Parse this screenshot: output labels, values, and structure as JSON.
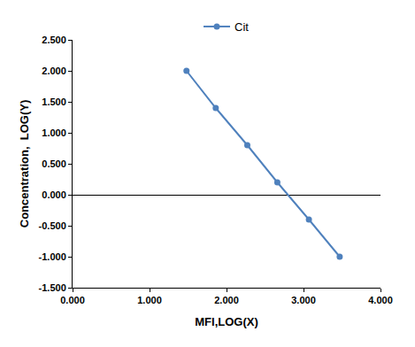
{
  "chart_data": {
    "type": "line",
    "x_label": "MFI,LOG(X)",
    "y_label": "Concentration,  LOG(Y)",
    "series": [
      {
        "name": "Cit",
        "color": "#4f81bd",
        "marker": "circle",
        "line_style": "solid",
        "x": [
          1.48,
          1.86,
          2.27,
          2.66,
          3.07,
          3.47
        ],
        "values": [
          2.0,
          1.4,
          0.8,
          0.2,
          -0.4,
          -1.0
        ]
      }
    ],
    "xlim": [
      0,
      4
    ],
    "xticks": [
      {
        "value": 0,
        "label": "0.000"
      },
      {
        "value": 1,
        "label": "1.000"
      },
      {
        "value": 2,
        "label": "2.000"
      },
      {
        "value": 3,
        "label": "3.000"
      },
      {
        "value": 4,
        "label": "4.000"
      }
    ],
    "ylim": [
      -1.5,
      2.5
    ],
    "yticks": [
      {
        "value": -1.5,
        "label": "-1.500"
      },
      {
        "value": -1,
        "label": "-1.000"
      },
      {
        "value": -0.5,
        "label": "-0.500"
      },
      {
        "value": 0,
        "label": "0.000"
      },
      {
        "value": 0.5,
        "label": "0.500"
      },
      {
        "value": 1,
        "label": "1.000"
      },
      {
        "value": 1.5,
        "label": "1.500"
      },
      {
        "value": 2,
        "label": "2.000"
      },
      {
        "value": 2.5,
        "label": "2.500"
      }
    ],
    "grid": false,
    "legend": "top"
  }
}
